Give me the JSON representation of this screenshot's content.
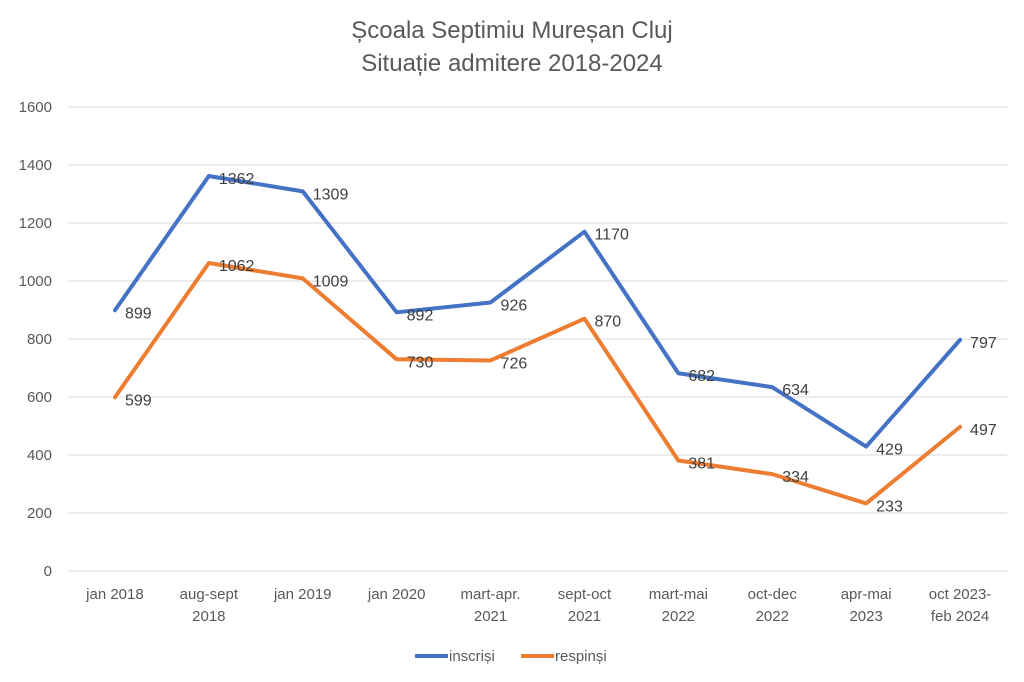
{
  "chart_data": {
    "type": "line",
    "title": [
      "Școala Septimiu Mureșan Cluj",
      "Situație admitere 2018-2024"
    ],
    "xlabel": "",
    "ylabel": "",
    "categories": [
      [
        "jan  2018"
      ],
      [
        "aug-sept",
        "2018"
      ],
      [
        "jan 2019"
      ],
      [
        "jan 2020"
      ],
      [
        "mart-apr.",
        "2021"
      ],
      [
        "sept-oct",
        "2021"
      ],
      [
        "mart-mai",
        "2022"
      ],
      [
        "oct-dec",
        "2022"
      ],
      [
        "apr-mai",
        "2023"
      ],
      [
        "oct 2023-",
        "feb 2024"
      ]
    ],
    "series": [
      {
        "name": "inscriși",
        "color": "#4472C4",
        "values": [
          899,
          1362,
          1309,
          892,
          926,
          1170,
          682,
          634,
          429,
          797
        ]
      },
      {
        "name": "respinși",
        "color": "#ED7D31",
        "values": [
          599,
          1062,
          1009,
          730,
          726,
          870,
          381,
          334,
          233,
          497
        ]
      }
    ],
    "ylim": [
      0,
      1600
    ],
    "yticks": [
      0,
      200,
      400,
      600,
      800,
      1000,
      1200,
      1400,
      1600
    ],
    "grid": true,
    "gridColor": "#d9d9d9",
    "data_labels": true,
    "legend": "bottom"
  }
}
